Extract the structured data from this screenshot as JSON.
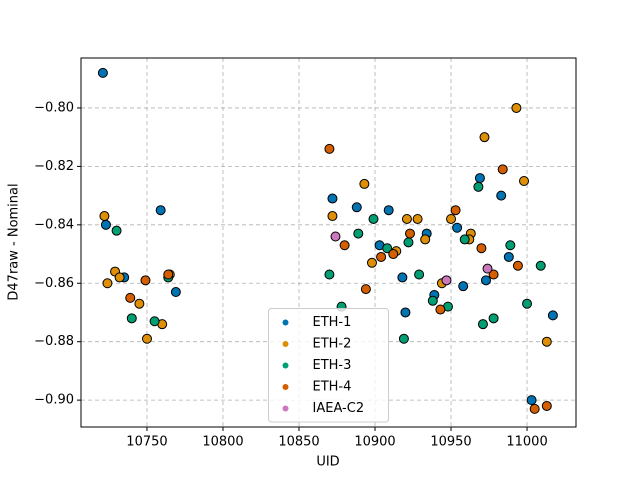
{
  "chart_data": {
    "type": "scatter",
    "x_label": "UID",
    "y_label": "D47raw - Nominal",
    "xlim": [
      10706.6,
      11032.2
    ],
    "ylim": [
      -0.9092,
      -0.7829
    ],
    "xticks": [
      10750,
      10800,
      10850,
      10900,
      10950,
      11000
    ],
    "yticks": [
      {
        "value": -0.9,
        "label": "−0.90"
      },
      {
        "value": -0.88,
        "label": "−0.88"
      },
      {
        "value": -0.86,
        "label": "−0.86"
      },
      {
        "value": -0.84,
        "label": "−0.84"
      },
      {
        "value": -0.82,
        "label": "−0.82"
      },
      {
        "value": -0.8,
        "label": "−0.80"
      }
    ],
    "grid": true,
    "legend": "lower center",
    "series": [
      {
        "name": "ETH-1",
        "color": "#0173b2",
        "x": [
          10721,
          10723,
          10735,
          10759,
          10769,
          10872,
          10888,
          10909,
          10903,
          10918,
          10920,
          10934,
          10939,
          10954,
          10958,
          10969,
          10973,
          10983,
          10988,
          11003,
          11017
        ],
        "values": [
          -0.788,
          -0.84,
          -0.858,
          -0.835,
          -0.863,
          -0.831,
          -0.834,
          -0.835,
          -0.847,
          -0.858,
          -0.87,
          -0.843,
          -0.864,
          -0.841,
          -0.861,
          -0.824,
          -0.859,
          -0.83,
          -0.851,
          -0.9,
          -0.871
        ]
      },
      {
        "name": "ETH-2",
        "color": "#de8f05",
        "x": [
          10722,
          10724,
          10729,
          10732,
          10745,
          10750,
          10760,
          10765,
          10872,
          10893,
          10898,
          10914,
          10921,
          10928,
          10933,
          10944,
          10950,
          10963,
          10962,
          10972,
          10993,
          10998,
          11013
        ],
        "values": [
          -0.837,
          -0.86,
          -0.856,
          -0.858,
          -0.867,
          -0.879,
          -0.874,
          -0.857,
          -0.837,
          -0.826,
          -0.853,
          -0.849,
          -0.838,
          -0.838,
          -0.845,
          -0.86,
          -0.838,
          -0.843,
          -0.845,
          -0.81,
          -0.8,
          -0.825,
          -0.88
        ]
      },
      {
        "name": "ETH-3",
        "color": "#029e73",
        "x": [
          10730,
          10740,
          10755,
          10764,
          10870,
          10878,
          10889,
          10899,
          10908,
          10919,
          10922,
          10929,
          10938,
          10948,
          10959,
          10968,
          10971,
          10978,
          10989,
          11000,
          11009
        ],
        "values": [
          -0.842,
          -0.872,
          -0.873,
          -0.858,
          -0.857,
          -0.868,
          -0.843,
          -0.838,
          -0.848,
          -0.879,
          -0.846,
          -0.857,
          -0.866,
          -0.868,
          -0.845,
          -0.827,
          -0.874,
          -0.872,
          -0.847,
          -0.867,
          -0.854
        ]
      },
      {
        "name": "ETH-4",
        "color": "#d55e00",
        "x": [
          10739,
          10749,
          10764,
          10870,
          10880,
          10894,
          10904,
          10912,
          10923,
          10943,
          10953,
          10970,
          10978,
          10984,
          10994,
          11005,
          11013
        ],
        "values": [
          -0.865,
          -0.859,
          -0.857,
          -0.814,
          -0.847,
          -0.862,
          -0.851,
          -0.85,
          -0.843,
          -0.869,
          -0.835,
          -0.848,
          -0.857,
          -0.821,
          -0.854,
          -0.903,
          -0.902
        ]
      },
      {
        "name": "IAEA-C2",
        "color": "#cc78bc",
        "x": [
          10874,
          10947,
          10974
        ],
        "values": [
          -0.844,
          -0.859,
          -0.855
        ]
      }
    ]
  }
}
